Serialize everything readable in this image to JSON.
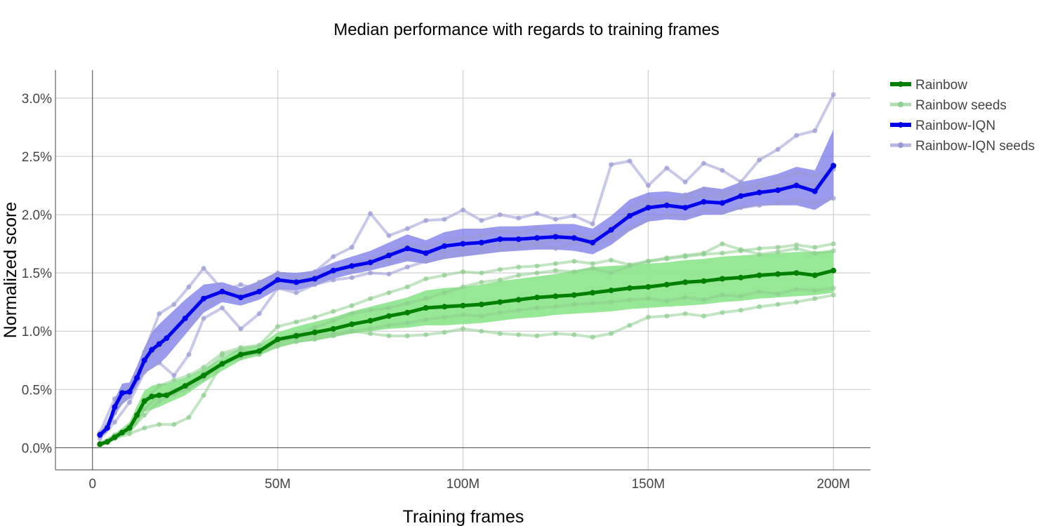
{
  "chart_data": {
    "type": "line",
    "title": "Median performance with regards to training frames",
    "xlabel": "Training frames",
    "ylabel": "Normalized score",
    "xlim": [
      -10,
      210
    ],
    "ylim": [
      -0.19,
      3.24
    ],
    "x_ticks": [
      0,
      50,
      100,
      150,
      200
    ],
    "x_tick_labels": [
      "0",
      "50M",
      "100M",
      "150M",
      "200M"
    ],
    "y_ticks": [
      0,
      0.5,
      1.0,
      1.5,
      2.0,
      2.5,
      3.0
    ],
    "y_tick_labels": [
      "0.0%",
      "0.5%",
      "1.0%",
      "1.5%",
      "2.0%",
      "2.5%",
      "3.0%"
    ],
    "grid": true,
    "legend_position": "top-right",
    "legend": [
      "Rainbow",
      "Rainbow seeds",
      "Rainbow-IQN",
      "Rainbow-IQN seeds"
    ],
    "colors": {
      "rainbow": "#008000",
      "rainbow_band": "#90e690",
      "rainbow_seeds": "#8fcf8f",
      "iqn": "#0000ee",
      "iqn_band": "#7878e8",
      "iqn_seeds": "#9a9ad6"
    },
    "series": [
      {
        "name": "Rainbow",
        "x": [
          2,
          4,
          6,
          8,
          10,
          12,
          14,
          16,
          18,
          20,
          25,
          30,
          35,
          40,
          45,
          50,
          55,
          60,
          65,
          70,
          75,
          80,
          85,
          90,
          95,
          100,
          105,
          110,
          115,
          120,
          125,
          130,
          135,
          140,
          145,
          150,
          155,
          160,
          165,
          170,
          175,
          180,
          185,
          190,
          195,
          200
        ],
        "y": [
          0.03,
          0.05,
          0.09,
          0.13,
          0.17,
          0.28,
          0.4,
          0.44,
          0.45,
          0.45,
          0.53,
          0.62,
          0.72,
          0.8,
          0.83,
          0.93,
          0.96,
          0.99,
          1.02,
          1.06,
          1.09,
          1.13,
          1.16,
          1.2,
          1.21,
          1.22,
          1.23,
          1.25,
          1.27,
          1.29,
          1.3,
          1.31,
          1.33,
          1.35,
          1.37,
          1.38,
          1.4,
          1.42,
          1.43,
          1.45,
          1.46,
          1.48,
          1.49,
          1.5,
          1.48,
          1.52
        ],
        "lower": [
          0.02,
          0.04,
          0.07,
          0.1,
          0.13,
          0.2,
          0.31,
          0.33,
          0.35,
          0.38,
          0.45,
          0.56,
          0.66,
          0.75,
          0.79,
          0.86,
          0.9,
          0.92,
          0.95,
          0.98,
          1.0,
          1.02,
          1.03,
          1.05,
          1.05,
          1.06,
          1.07,
          1.09,
          1.11,
          1.12,
          1.14,
          1.15,
          1.16,
          1.17,
          1.19,
          1.2,
          1.21,
          1.22,
          1.23,
          1.25,
          1.26,
          1.28,
          1.29,
          1.3,
          1.31,
          1.33
        ],
        "upper": [
          0.05,
          0.07,
          0.12,
          0.17,
          0.22,
          0.36,
          0.49,
          0.53,
          0.55,
          0.55,
          0.6,
          0.68,
          0.77,
          0.86,
          0.88,
          0.99,
          1.04,
          1.08,
          1.12,
          1.17,
          1.21,
          1.25,
          1.29,
          1.35,
          1.37,
          1.38,
          1.4,
          1.43,
          1.45,
          1.47,
          1.49,
          1.52,
          1.55,
          1.56,
          1.57,
          1.58,
          1.59,
          1.61,
          1.62,
          1.64,
          1.65,
          1.66,
          1.67,
          1.68,
          1.68,
          1.69
        ]
      },
      {
        "name": "Rainbow-IQN",
        "x": [
          2,
          4,
          6,
          8,
          10,
          12,
          14,
          16,
          18,
          20,
          25,
          30,
          35,
          40,
          45,
          50,
          55,
          60,
          65,
          70,
          75,
          80,
          85,
          90,
          95,
          100,
          105,
          110,
          115,
          120,
          125,
          130,
          135,
          140,
          145,
          150,
          155,
          160,
          165,
          170,
          175,
          180,
          185,
          190,
          195,
          200
        ],
        "y": [
          0.11,
          0.17,
          0.35,
          0.47,
          0.48,
          0.6,
          0.75,
          0.84,
          0.89,
          0.94,
          1.11,
          1.28,
          1.34,
          1.29,
          1.34,
          1.44,
          1.42,
          1.45,
          1.52,
          1.56,
          1.59,
          1.65,
          1.71,
          1.67,
          1.73,
          1.75,
          1.76,
          1.79,
          1.79,
          1.8,
          1.81,
          1.8,
          1.76,
          1.87,
          1.99,
          2.06,
          2.08,
          2.06,
          2.11,
          2.1,
          2.16,
          2.19,
          2.21,
          2.25,
          2.2,
          2.42
        ],
        "lower": [
          0.09,
          0.13,
          0.27,
          0.38,
          0.42,
          0.53,
          0.64,
          0.68,
          0.72,
          0.78,
          0.97,
          1.16,
          1.25,
          1.22,
          1.27,
          1.36,
          1.35,
          1.39,
          1.45,
          1.49,
          1.52,
          1.56,
          1.6,
          1.58,
          1.62,
          1.64,
          1.66,
          1.68,
          1.69,
          1.7,
          1.7,
          1.69,
          1.66,
          1.74,
          1.86,
          1.94,
          1.96,
          1.95,
          2.0,
          2.0,
          2.05,
          2.08,
          2.08,
          2.08,
          2.04,
          2.14
        ],
        "upper": [
          0.13,
          0.2,
          0.42,
          0.55,
          0.56,
          0.7,
          0.86,
          0.99,
          1.06,
          1.12,
          1.27,
          1.4,
          1.42,
          1.37,
          1.43,
          1.51,
          1.5,
          1.52,
          1.59,
          1.64,
          1.69,
          1.76,
          1.83,
          1.78,
          1.85,
          1.88,
          1.88,
          1.9,
          1.9,
          1.91,
          1.92,
          1.92,
          1.88,
          1.99,
          2.13,
          2.19,
          2.2,
          2.18,
          2.24,
          2.22,
          2.28,
          2.31,
          2.35,
          2.41,
          2.38,
          2.73
        ]
      }
    ],
    "seed_series": [
      {
        "name": "Rainbow seeds",
        "x": [
          2,
          6,
          10,
          14,
          18,
          22,
          26,
          30,
          35,
          40,
          45,
          50,
          55,
          60,
          65,
          70,
          75,
          80,
          85,
          90,
          95,
          100,
          105,
          110,
          115,
          120,
          125,
          130,
          135,
          140,
          145,
          150,
          155,
          160,
          165,
          170,
          175,
          180,
          185,
          190,
          195,
          200
        ],
        "lines": [
          [
            0.03,
            0.11,
            0.18,
            0.41,
            0.53,
            0.58,
            0.62,
            0.69,
            0.81,
            0.86,
            0.88,
            1.04,
            1.08,
            1.12,
            1.17,
            1.22,
            1.28,
            1.33,
            1.38,
            1.45,
            1.48,
            1.51,
            1.5,
            1.53,
            1.55,
            1.56,
            1.58,
            1.6,
            1.58,
            1.61,
            1.57,
            1.6,
            1.62,
            1.64,
            1.66,
            1.67,
            1.69,
            1.71,
            1.72,
            1.74,
            1.72,
            1.75
          ],
          [
            0.02,
            0.08,
            0.12,
            0.17,
            0.2,
            0.2,
            0.26,
            0.45,
            0.73,
            0.79,
            0.83,
            0.9,
            0.94,
            0.96,
            0.98,
            1.0,
            0.98,
            0.96,
            0.96,
            0.97,
            0.99,
            1.02,
            1.0,
            0.98,
            0.97,
            0.96,
            0.98,
            0.97,
            0.95,
            0.98,
            1.05,
            1.12,
            1.13,
            1.15,
            1.13,
            1.16,
            1.18,
            1.21,
            1.23,
            1.25,
            1.28,
            1.31
          ],
          [
            0.04,
            0.1,
            0.15,
            0.33,
            0.45,
            0.49,
            0.55,
            0.64,
            0.79,
            0.84,
            0.8,
            0.93,
            0.98,
            1.03,
            1.09,
            1.15,
            1.18,
            1.2,
            1.24,
            1.28,
            1.33,
            1.38,
            1.42,
            1.44,
            1.48,
            1.5,
            1.52,
            1.51,
            1.54,
            1.5,
            1.56,
            1.6,
            1.63,
            1.65,
            1.67,
            1.75,
            1.7,
            1.66,
            1.68,
            1.71,
            1.67,
            1.69
          ],
          [
            0.03,
            0.09,
            0.14,
            0.28,
            0.4,
            0.46,
            0.51,
            0.59,
            0.72,
            0.77,
            0.82,
            0.87,
            0.91,
            0.93,
            0.96,
            1.0,
            1.02,
            1.05,
            1.07,
            1.1,
            1.12,
            1.14,
            1.13,
            1.16,
            1.18,
            1.2,
            1.21,
            1.23,
            1.24,
            1.25,
            1.27,
            1.28,
            1.26,
            1.29,
            1.27,
            1.31,
            1.3,
            1.34,
            1.32,
            1.36,
            1.35,
            1.37
          ]
        ]
      },
      {
        "name": "Rainbow-IQN seeds",
        "x": [
          2,
          6,
          10,
          14,
          18,
          22,
          26,
          30,
          35,
          40,
          45,
          50,
          55,
          60,
          65,
          70,
          75,
          80,
          85,
          90,
          95,
          100,
          105,
          110,
          115,
          120,
          125,
          130,
          135,
          140,
          145,
          150,
          155,
          160,
          165,
          170,
          175,
          180,
          185,
          190,
          195,
          200
        ],
        "lines": [
          [
            0.13,
            0.42,
            0.52,
            0.82,
            1.15,
            1.23,
            1.38,
            1.54,
            1.36,
            1.32,
            1.42,
            1.5,
            1.46,
            1.51,
            1.64,
            1.72,
            2.01,
            1.82,
            1.88,
            1.95,
            1.96,
            2.04,
            1.95,
            2.0,
            1.97,
            2.01,
            1.96,
            1.99,
            1.92,
            2.43,
            2.46,
            2.25,
            2.4,
            2.28,
            2.44,
            2.38,
            2.28,
            2.47,
            2.56,
            2.68,
            2.72,
            3.03
          ],
          [
            0.1,
            0.33,
            0.44,
            0.74,
            0.91,
            1.0,
            1.14,
            1.29,
            1.34,
            1.4,
            1.36,
            1.42,
            1.44,
            1.47,
            1.5,
            1.52,
            1.56,
            1.6,
            1.63,
            1.65,
            1.68,
            1.7,
            1.72,
            1.74,
            1.75,
            1.76,
            1.78,
            1.79,
            1.8,
            1.9,
            2.02,
            2.09,
            2.12,
            2.14,
            2.16,
            2.15,
            2.2,
            2.23,
            2.25,
            2.27,
            2.26,
            2.41
          ],
          [
            0.08,
            0.22,
            0.39,
            0.65,
            0.73,
            0.62,
            0.8,
            1.11,
            1.2,
            1.02,
            1.15,
            1.37,
            1.33,
            1.4,
            1.44,
            1.46,
            1.5,
            1.49,
            1.55,
            1.6,
            1.64,
            1.66,
            1.68,
            1.7,
            1.72,
            1.74,
            1.71,
            1.76,
            1.73,
            1.8,
            1.88,
            1.96,
            2.0,
            1.98,
            2.04,
            2.02,
            2.06,
            2.08,
            2.1,
            2.12,
            2.1,
            2.14
          ],
          [
            0.11,
            0.3,
            0.47,
            0.72,
            0.85,
            0.95,
            1.05,
            1.2,
            1.3,
            1.34,
            1.38,
            1.45,
            1.4,
            1.43,
            1.52,
            1.57,
            1.62,
            1.68,
            1.75,
            1.72,
            1.77,
            1.8,
            1.82,
            1.86,
            1.84,
            1.88,
            1.83,
            1.85,
            1.78,
            1.84,
            2.05,
            2.14,
            2.1,
            2.17,
            2.22,
            2.18,
            2.24,
            2.26,
            2.31,
            2.36,
            2.33,
            2.39
          ]
        ]
      }
    ]
  }
}
